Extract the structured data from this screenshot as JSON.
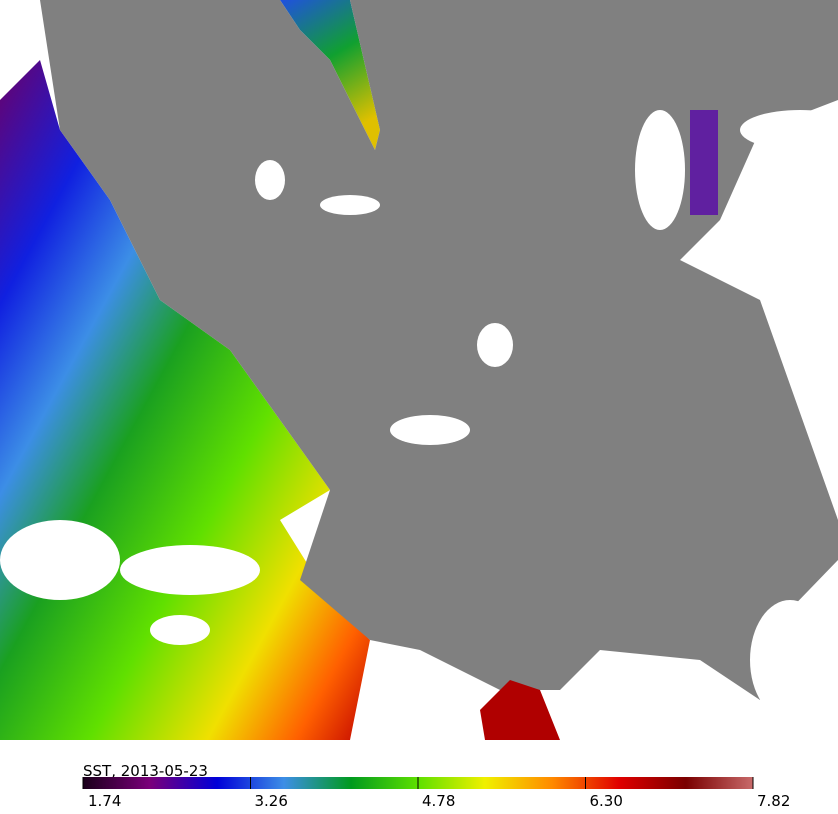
{
  "colorbar": {
    "label": "SST, 2013-05-23",
    "lim": [
      1.74,
      7.82
    ],
    "ticks": [
      1.74,
      3.26,
      4.78,
      {
        "value": 6.3,
        "label": "6.30"
      },
      7.82
    ],
    "colors": [
      "#1a001a",
      "#7a007a",
      "#0000d8",
      "#3c8ee6",
      "#009a1e",
      "#5ee000",
      "#f0f000",
      "#ff8a00",
      "#e00000",
      "#7a0000",
      "#c86a6a"
    ]
  }
}
